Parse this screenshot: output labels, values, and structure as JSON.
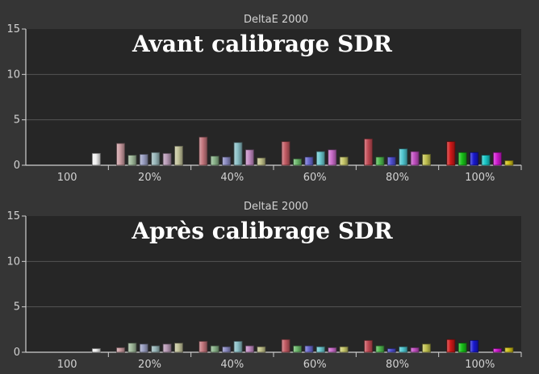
{
  "chart_data": [
    {
      "type": "bar",
      "title": "DeltaE 2000",
      "annotation": "Avant calibrage SDR",
      "ylim": [
        0,
        15
      ],
      "yticks": [
        0,
        5,
        10,
        15
      ],
      "categories": [
        "100",
        "20%",
        "40%",
        "60%",
        "80%",
        "100%"
      ],
      "groups": [
        [
          {
            "value": 1.3,
            "color": "#f2f2f2"
          }
        ],
        [
          {
            "value": 2.4,
            "color": "#c99a9f"
          },
          {
            "value": 1.1,
            "color": "#9fb89a"
          },
          {
            "value": 1.2,
            "color": "#9a9fc2"
          },
          {
            "value": 1.4,
            "color": "#9ab8bb"
          },
          {
            "value": 1.3,
            "color": "#b89ab6"
          },
          {
            "value": 2.1,
            "color": "#c2c29a"
          }
        ],
        [
          {
            "value": 3.1,
            "color": "#c2757c"
          },
          {
            "value": 1.0,
            "color": "#8ab38a"
          },
          {
            "value": 0.9,
            "color": "#8a8ac2"
          },
          {
            "value": 2.5,
            "color": "#8abfc6"
          },
          {
            "value": 1.7,
            "color": "#c28ac2"
          },
          {
            "value": 0.8,
            "color": "#c2c28a"
          }
        ],
        [
          {
            "value": 2.6,
            "color": "#c25b63"
          },
          {
            "value": 0.7,
            "color": "#6bb86b"
          },
          {
            "value": 0.9,
            "color": "#6b6bd0"
          },
          {
            "value": 1.5,
            "color": "#6bc9d0"
          },
          {
            "value": 1.7,
            "color": "#c96bc9"
          },
          {
            "value": 0.9,
            "color": "#c9c96b"
          }
        ],
        [
          {
            "value": 2.9,
            "color": "#c24b55"
          },
          {
            "value": 0.9,
            "color": "#4fb84f"
          },
          {
            "value": 0.9,
            "color": "#4f4fd0"
          },
          {
            "value": 1.8,
            "color": "#4fc6d0"
          },
          {
            "value": 1.5,
            "color": "#c24fc2"
          },
          {
            "value": 1.2,
            "color": "#c2c24f"
          }
        ],
        [
          {
            "value": 2.6,
            "color": "#d01818"
          },
          {
            "value": 1.4,
            "color": "#18c018"
          },
          {
            "value": 1.4,
            "color": "#1818d0"
          },
          {
            "value": 1.1,
            "color": "#18c9c9"
          },
          {
            "value": 1.4,
            "color": "#d018d0"
          },
          {
            "value": 0.5,
            "color": "#d0c018"
          }
        ]
      ]
    },
    {
      "type": "bar",
      "title": "DeltaE 2000",
      "annotation": "Après calibrage SDR",
      "ylim": [
        0,
        15
      ],
      "yticks": [
        0,
        5,
        10,
        15
      ],
      "categories": [
        "100",
        "20%",
        "40%",
        "60%",
        "80%",
        "100%"
      ],
      "groups": [
        [
          {
            "value": 0.4,
            "color": "#f2f2f2"
          }
        ],
        [
          {
            "value": 0.5,
            "color": "#c99a9f"
          },
          {
            "value": 1.0,
            "color": "#9fb89a"
          },
          {
            "value": 0.9,
            "color": "#9a9fc2"
          },
          {
            "value": 0.7,
            "color": "#9ab8bb"
          },
          {
            "value": 0.9,
            "color": "#b89ab6"
          },
          {
            "value": 1.0,
            "color": "#c2c29a"
          }
        ],
        [
          {
            "value": 1.2,
            "color": "#c2757c"
          },
          {
            "value": 0.7,
            "color": "#8ab38a"
          },
          {
            "value": 0.6,
            "color": "#8a8ac2"
          },
          {
            "value": 1.2,
            "color": "#8abfc6"
          },
          {
            "value": 0.7,
            "color": "#c28ac2"
          },
          {
            "value": 0.6,
            "color": "#c2c28a"
          }
        ],
        [
          {
            "value": 1.4,
            "color": "#c25b63"
          },
          {
            "value": 0.7,
            "color": "#6bb86b"
          },
          {
            "value": 0.7,
            "color": "#6b6bd0"
          },
          {
            "value": 0.6,
            "color": "#6bc9d0"
          },
          {
            "value": 0.5,
            "color": "#c96bc9"
          },
          {
            "value": 0.6,
            "color": "#c9c96b"
          }
        ],
        [
          {
            "value": 1.3,
            "color": "#c24b55"
          },
          {
            "value": 0.7,
            "color": "#4fb84f"
          },
          {
            "value": 0.4,
            "color": "#4f4fd0"
          },
          {
            "value": 0.6,
            "color": "#4fc6d0"
          },
          {
            "value": 0.5,
            "color": "#c24fc2"
          },
          {
            "value": 0.9,
            "color": "#c2c24f"
          }
        ],
        [
          {
            "value": 1.4,
            "color": "#d01818"
          },
          {
            "value": 1.0,
            "color": "#18c018"
          },
          {
            "value": 1.3,
            "color": "#1818d0"
          },
          {
            "value": 0.0,
            "color": "#18c9c9"
          },
          {
            "value": 0.4,
            "color": "#d018d0"
          },
          {
            "value": 0.5,
            "color": "#d0c018"
          }
        ]
      ]
    }
  ],
  "colors": {
    "page_background": "#353535",
    "plot_background": "#262626",
    "axis": "#cfcfcf",
    "gridline": "#555555",
    "title_text": "#ffffff"
  }
}
